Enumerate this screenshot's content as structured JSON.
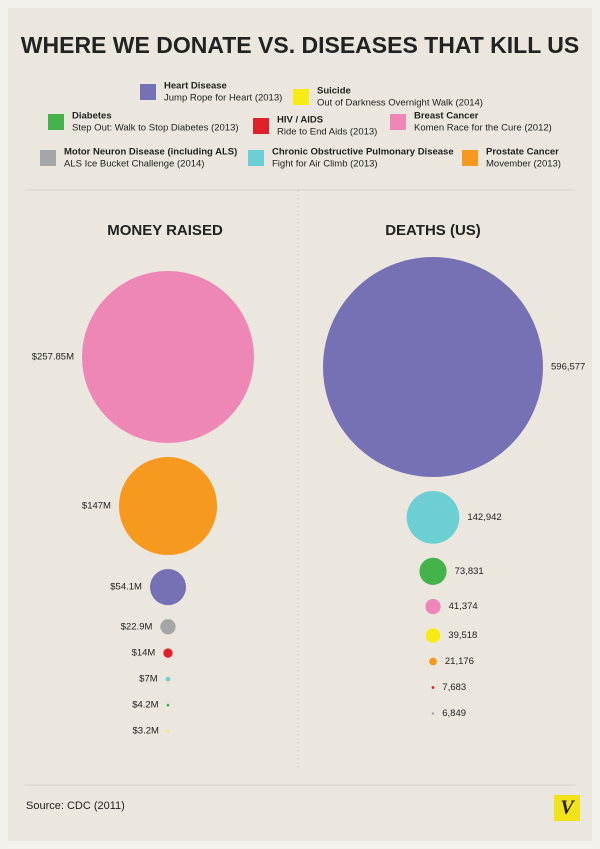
{
  "title": "WHERE WE DONATE VS. DISEASES THAT KILL US",
  "legend": [
    {
      "name": "Heart Disease",
      "campaign": "Jump Rope for Heart (2013)",
      "color": "#7671b4"
    },
    {
      "name": "Suicide",
      "campaign": "Out of Darkness Overnight Walk (2014)",
      "color": "#f6ec13"
    },
    {
      "name": "Diabetes",
      "campaign": "Step Out: Walk to Stop Diabetes (2013)",
      "color": "#44b34b"
    },
    {
      "name": "HIV / AIDS",
      "campaign": "Ride to End Aids (2013)",
      "color": "#e2202a"
    },
    {
      "name": "Breast Cancer",
      "campaign": "Komen Race for the Cure (2012)",
      "color": "#ee86b6"
    },
    {
      "name": "Motor Neuron Disease (including ALS)",
      "campaign": "ALS Ice Bucket Challenge (2014)",
      "color": "#a6a6a6"
    },
    {
      "name": "Chronic Obstructive Pulmonary Disease",
      "campaign": "Fight for Air Climb (2013)",
      "color": "#6bcfd3"
    },
    {
      "name": "Prostate Cancer",
      "campaign": "Movember (2013)",
      "color": "#f7991f"
    }
  ],
  "chart_data": [
    {
      "type": "bubble",
      "title": "MONEY RAISED",
      "values": [
        257.85,
        147,
        54.1,
        22.9,
        14,
        7,
        4.2,
        3.2
      ],
      "value_labels": [
        "$257.85M",
        "$147M",
        "$54.1M",
        "$22.9M",
        "$14M",
        "$7M",
        "$4.2M",
        "$3.2M"
      ],
      "colors": [
        "#ee86b6",
        "#f7991f",
        "#7671b4",
        "#a6a6a6",
        "#e2202a",
        "#6bcfd3",
        "#44b34b",
        "#f6ec13"
      ]
    },
    {
      "type": "bubble",
      "title": "DEATHS (US)",
      "values": [
        596577,
        142942,
        73831,
        41374,
        39518,
        21176,
        7683,
        6849
      ],
      "value_labels": [
        "596,577",
        "142,942",
        "73,831",
        "41,374",
        "39,518",
        "21,176",
        "7,683",
        "6,849"
      ],
      "colors": [
        "#7671b4",
        "#6bcfd3",
        "#44b34b",
        "#ee86b6",
        "#f6ec13",
        "#f7991f",
        "#e2202a",
        "#a6a6a6"
      ]
    }
  ],
  "source": "Source: CDC (2011)",
  "logo": "V"
}
